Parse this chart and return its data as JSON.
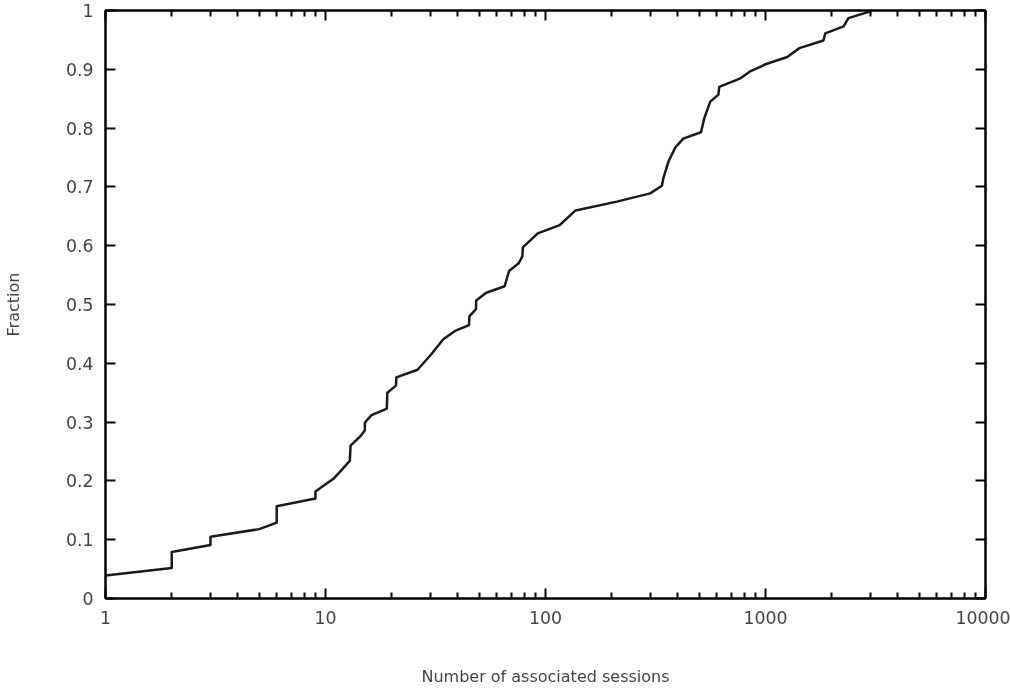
{
  "chart_data": {
    "type": "line",
    "xlabel": "Number of associated sessions",
    "ylabel": "Fraction",
    "log": "x",
    "grid": false,
    "xlim": [
      1,
      10000
    ],
    "ylim": [
      0,
      1
    ],
    "xticks": [
      1,
      10,
      100,
      1000,
      10000
    ],
    "yticks": [
      0,
      0.1,
      0.2,
      0.3,
      0.4,
      0.5,
      0.6,
      0.7,
      0.8,
      0.9,
      1
    ],
    "series": [
      {
        "color": "#1a1a1a",
        "x": [
          1,
          2,
          2,
          3,
          3,
          5,
          6,
          6,
          9,
          9,
          10.9,
          12.9,
          13,
          14.5,
          15.1,
          15.1,
          16.2,
          19,
          19.1,
          20.9,
          21,
          26.2,
          30.2,
          34.3,
          38.8,
          44.9,
          45.1,
          48.3,
          48.4,
          53.8,
          65.2,
          68.3,
          75.5,
          78.5,
          78.9,
          92.2,
          116,
          128,
          137,
          211,
          299,
          338,
          343,
          362,
          389,
          423,
          509,
          527,
          561,
          611,
          616,
          764,
          847,
          1008,
          1256,
          1426,
          1834,
          1870,
          2265,
          2382,
          3027
        ],
        "values": [
          0.039,
          0.052,
          0.079,
          0.091,
          0.105,
          0.118,
          0.129,
          0.157,
          0.17,
          0.182,
          0.204,
          0.234,
          0.26,
          0.277,
          0.286,
          0.299,
          0.312,
          0.323,
          0.35,
          0.362,
          0.376,
          0.389,
          0.415,
          0.441,
          0.455,
          0.465,
          0.48,
          0.492,
          0.507,
          0.52,
          0.531,
          0.557,
          0.57,
          0.582,
          0.597,
          0.621,
          0.635,
          0.65,
          0.66,
          0.675,
          0.689,
          0.702,
          0.714,
          0.743,
          0.767,
          0.782,
          0.793,
          0.817,
          0.845,
          0.857,
          0.87,
          0.884,
          0.896,
          0.909,
          0.921,
          0.936,
          0.949,
          0.961,
          0.973,
          0.987,
          0.999
        ]
      }
    ]
  }
}
